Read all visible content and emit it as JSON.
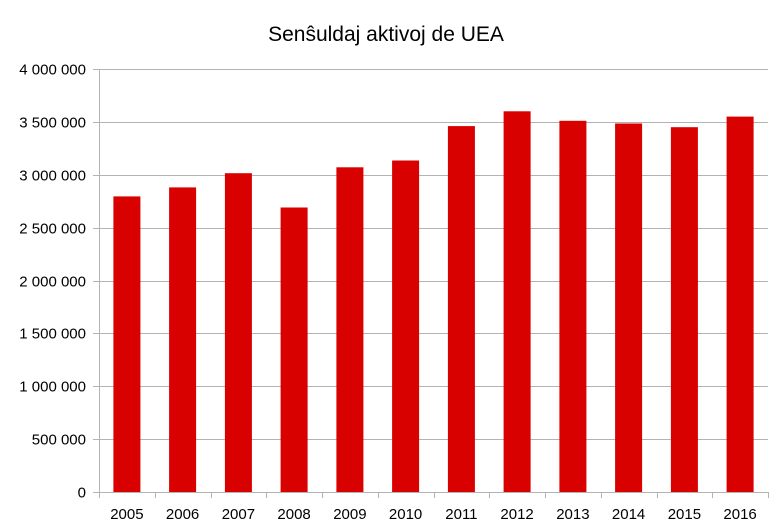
{
  "chart_data": {
    "type": "bar",
    "title": "Senŝuldaj aktivoj de UEA",
    "categories": [
      "2005",
      "2006",
      "2007",
      "2008",
      "2009",
      "2010",
      "2011",
      "2012",
      "2013",
      "2014",
      "2015",
      "2016"
    ],
    "values": [
      2795000,
      2880000,
      3015000,
      2690000,
      3070000,
      3135000,
      3460000,
      3600000,
      3510000,
      3485000,
      3450000,
      3550000
    ],
    "ylim": [
      0,
      4000000
    ],
    "yticks": [
      0,
      500000,
      1000000,
      1500000,
      2000000,
      2500000,
      3000000,
      3500000,
      4000000
    ],
    "ytick_labels": [
      "0",
      "500 000",
      "1 000 000",
      "1 500 000",
      "2 000 000",
      "2 500 000",
      "3 000 000",
      "3 500 000",
      "4 000 000"
    ],
    "xlabel": "",
    "ylabel": "",
    "grid": "horizontal",
    "legend": "none",
    "bar_color": "#d90000",
    "grid_color": "#b3b3b3"
  }
}
